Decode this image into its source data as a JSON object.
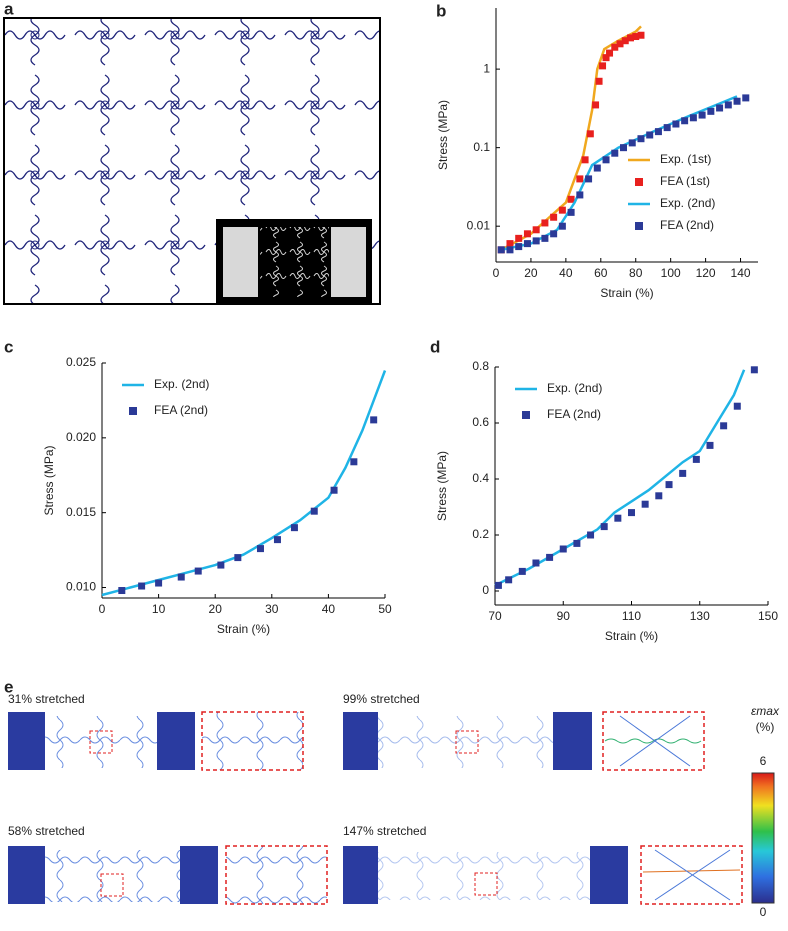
{
  "panel_labels": [
    "a",
    "b",
    "c",
    "d",
    "e"
  ],
  "chart_data": [
    {
      "type": "mixed",
      "xlabel": "Strain (%)",
      "ylabel": "Stress (MPa)",
      "log_y": true,
      "xlim": [
        0,
        150
      ],
      "xticks": [
        0,
        20,
        40,
        60,
        80,
        100,
        120,
        140
      ],
      "ylim": [
        0.0035,
        6
      ],
      "yticks": [
        0.01,
        0.1,
        1
      ],
      "legend": "lower right",
      "series": [
        {
          "name": "Exp. (1st)",
          "kind": "line",
          "color": "#f0a81e",
          "x": [
            3,
            20,
            40,
            50,
            55,
            58,
            62,
            70,
            80,
            83
          ],
          "values": [
            0.005,
            0.008,
            0.02,
            0.08,
            0.3,
            1,
            1.8,
            2.3,
            3,
            3.5
          ]
        },
        {
          "name": "FEA (1st)",
          "kind": "scatter",
          "color": "#e8201e",
          "x": [
            3,
            8,
            13,
            18,
            23,
            28,
            33,
            38,
            43,
            48,
            51,
            54,
            57,
            59,
            61,
            63,
            65,
            68,
            71,
            74,
            77,
            80,
            83
          ],
          "values": [
            0.005,
            0.006,
            0.007,
            0.008,
            0.009,
            0.011,
            0.013,
            0.016,
            0.022,
            0.04,
            0.07,
            0.15,
            0.35,
            0.7,
            1.1,
            1.4,
            1.6,
            1.9,
            2.1,
            2.3,
            2.5,
            2.6,
            2.7
          ]
        },
        {
          "name": "Exp. (2nd)",
          "kind": "line",
          "color": "#1fb4e6",
          "x": [
            3,
            20,
            35,
            45,
            55,
            70,
            90,
            110,
            130,
            138
          ],
          "values": [
            0.005,
            0.006,
            0.009,
            0.02,
            0.06,
            0.1,
            0.16,
            0.25,
            0.38,
            0.45
          ]
        },
        {
          "name": "FEA (2nd)",
          "kind": "scatter",
          "color": "#2b3a97",
          "x": [
            3,
            8,
            13,
            18,
            23,
            28,
            33,
            38,
            43,
            48,
            53,
            58,
            63,
            68,
            73,
            78,
            83,
            88,
            93,
            98,
            103,
            108,
            113,
            118,
            123,
            128,
            133,
            138,
            143
          ],
          "values": [
            0.005,
            0.005,
            0.0055,
            0.006,
            0.0065,
            0.007,
            0.008,
            0.01,
            0.015,
            0.025,
            0.04,
            0.055,
            0.07,
            0.085,
            0.1,
            0.115,
            0.13,
            0.145,
            0.16,
            0.18,
            0.2,
            0.22,
            0.24,
            0.26,
            0.29,
            0.32,
            0.35,
            0.39,
            0.43
          ]
        }
      ]
    },
    {
      "type": "mixed",
      "xlabel": "Strain (%)",
      "ylabel": "Stress (MPa)",
      "xlim": [
        0,
        50
      ],
      "xticks": [
        0,
        10,
        20,
        30,
        40,
        50
      ],
      "ylim": [
        0.0093,
        0.025
      ],
      "yticks": [
        {
          "value": 0.01,
          "label": "0.010"
        },
        0.015,
        {
          "value": 0.02,
          "label": "0.020"
        },
        0.025
      ],
      "legend": "upper left",
      "series": [
        {
          "name": "Exp. (2nd)",
          "kind": "line",
          "color": "#1fb4e6",
          "x": [
            0,
            5,
            10,
            15,
            20,
            25,
            30,
            35,
            40,
            43,
            46,
            50
          ],
          "values": [
            0.0095,
            0.01,
            0.0105,
            0.011,
            0.0115,
            0.0122,
            0.0133,
            0.0145,
            0.016,
            0.018,
            0.0205,
            0.0245
          ]
        },
        {
          "name": "FEA (2nd)",
          "kind": "scatter",
          "color": "#2b3a97",
          "x": [
            3.5,
            7,
            10,
            14,
            17,
            21,
            24,
            28,
            31,
            34,
            37.5,
            41,
            44.5,
            48
          ],
          "values": [
            0.0098,
            0.0101,
            0.0103,
            0.0107,
            0.0111,
            0.0115,
            0.012,
            0.0126,
            0.0132,
            0.014,
            0.0151,
            0.0165,
            0.0184,
            0.0212
          ]
        }
      ]
    },
    {
      "type": "mixed",
      "xlabel": "Strain (%)",
      "ylabel": "Stress (MPa)",
      "xlim": [
        70,
        150
      ],
      "xticks": [
        70,
        90,
        110,
        130,
        150
      ],
      "ylim": [
        -0.05,
        0.8
      ],
      "yticks": [
        0,
        0.2,
        0.4,
        0.6,
        0.8
      ],
      "legend": "upper left",
      "series": [
        {
          "name": "Exp. (2nd)",
          "kind": "line",
          "color": "#1fb4e6",
          "x": [
            70,
            80,
            90,
            100,
            105,
            115,
            125,
            130,
            135,
            140,
            143
          ],
          "values": [
            0.02,
            0.08,
            0.15,
            0.22,
            0.28,
            0.36,
            0.46,
            0.5,
            0.6,
            0.7,
            0.79
          ]
        },
        {
          "name": "FEA (2nd)",
          "kind": "scatter",
          "color": "#2b3a97",
          "x": [
            71,
            74,
            78,
            82,
            86,
            90,
            94,
            98,
            102,
            106,
            110,
            114,
            118,
            121,
            125,
            129,
            133,
            137,
            141,
            146
          ],
          "values": [
            0.02,
            0.04,
            0.07,
            0.1,
            0.12,
            0.15,
            0.17,
            0.2,
            0.23,
            0.26,
            0.28,
            0.31,
            0.34,
            0.38,
            0.42,
            0.47,
            0.52,
            0.59,
            0.66,
            0.79
          ]
        }
      ]
    }
  ],
  "panel_e": {
    "snapshots": [
      "31% stretched",
      "99% stretched",
      "58% stretched",
      "147% stretched"
    ],
    "colorbar": {
      "title": "εmax",
      "unit": "(%)",
      "max": "6",
      "min": "0"
    }
  }
}
